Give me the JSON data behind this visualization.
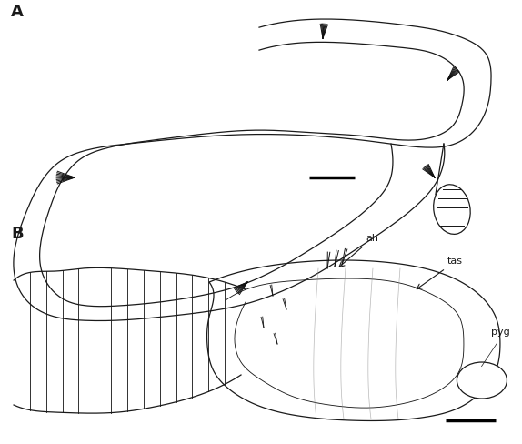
{
  "background_color": "#ffffff",
  "line_color": "#1a1a1a",
  "line_width": 0.9,
  "label_A": "A",
  "label_B": "B",
  "label_ah": "ah",
  "label_tas": "tas",
  "label_pyg": "pyg",
  "scale_bar_color": "#000000",
  "figsize": [
    5.74,
    4.88
  ]
}
